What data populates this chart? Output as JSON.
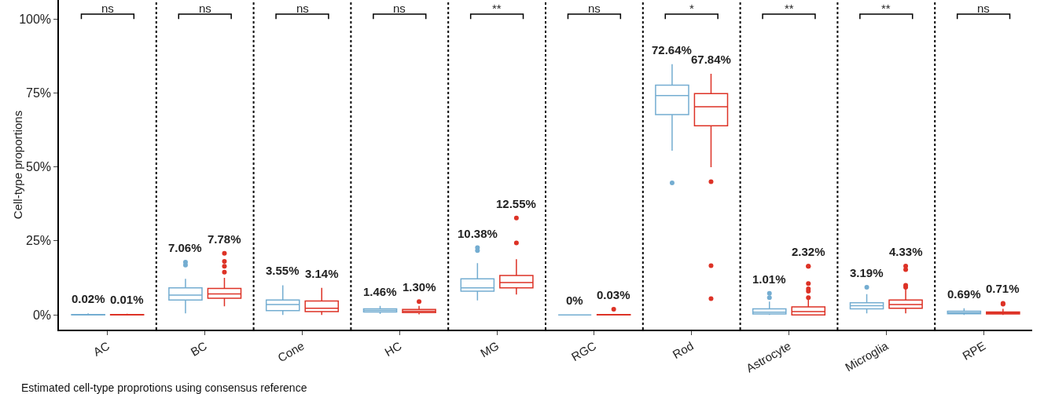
{
  "chart_data": {
    "type": "box",
    "ylabel": "Cell-type proportions",
    "categories": [
      "AC",
      "BC",
      "Cone",
      "HC",
      "MG",
      "RGC",
      "Rod",
      "Astrocyte",
      "Microglia",
      "RPE"
    ],
    "ylim": [
      -5,
      106.4
    ],
    "yticks": [
      {
        "value": 0,
        "label": "0%"
      },
      {
        "value": 25,
        "label": "25%"
      },
      {
        "value": 50,
        "label": "50%"
      },
      {
        "value": 75,
        "label": "75%"
      },
      {
        "value": 100,
        "label": "100%"
      }
    ],
    "grid": false,
    "marker": "circle",
    "series": [
      {
        "color": "#74add1",
        "value_labels": [
          "0.02%",
          "7.06%",
          "3.55%",
          "1.46%",
          "10.38%",
          "0%",
          "72.64%",
          "1.01%",
          "3.19%",
          "0.69%"
        ],
        "boxes": [
          {
            "low": 0,
            "q1": 0,
            "median": 0,
            "q3": 0.1,
            "high": 0.5
          },
          {
            "low": 0.5,
            "q1": 5.0,
            "median": 6.7,
            "q3": 9.1,
            "high": 12.2,
            "outliers": [
              16.8,
              17.8
            ]
          },
          {
            "low": 0,
            "q1": 1.4,
            "median": 3.5,
            "q3": 5.0,
            "high": 10
          },
          {
            "low": 0.3,
            "q1": 1.0,
            "median": 1.5,
            "q3": 2.0,
            "high": 3.0
          },
          {
            "low": 4.9,
            "q1": 8.0,
            "median": 9.1,
            "q3": 12.2,
            "high": 17.5,
            "outliers": [
              21.7,
              22.7
            ]
          },
          {
            "low": 0,
            "q1": 0,
            "median": 0,
            "q3": 0,
            "high": 0
          },
          {
            "low": 55.5,
            "q1": 67.7,
            "median": 74.1,
            "q3": 77.6,
            "high": 84.7,
            "outliers": [
              44.6
            ]
          },
          {
            "low": 0,
            "q1": 0.3,
            "median": 0.9,
            "q3": 2.0,
            "high": 4.5,
            "outliers": [
              5.8,
              7.3
            ]
          },
          {
            "low": 0.5,
            "q1": 2.0,
            "median": 3.1,
            "q3": 4.1,
            "high": 7.0,
            "outliers": [
              9.3
            ]
          },
          {
            "low": 0,
            "q1": 0.4,
            "median": 0.7,
            "q3": 1.2,
            "high": 2.2
          }
        ]
      },
      {
        "color": "#dd3226",
        "value_labels": [
          "0.01%",
          "7.78%",
          "3.14%",
          "1.30%",
          "12.55%",
          "0.03%",
          "67.84%",
          "2.32%",
          "4.33%",
          "0.71%"
        ],
        "boxes": [
          {
            "low": 0,
            "q1": 0,
            "median": 0,
            "q3": 0.1,
            "high": 0.4
          },
          {
            "low": 2.9,
            "q1": 5.6,
            "median": 7.1,
            "q3": 8.9,
            "high": 12.5,
            "outliers": [
              14.4,
              16.4,
              18.1,
              20.8
            ]
          },
          {
            "low": 0,
            "q1": 1.1,
            "median": 2.2,
            "q3": 4.7,
            "high": 9.1
          },
          {
            "low": 0.2,
            "q1": 0.8,
            "median": 1.2,
            "q3": 1.8,
            "high": 3.0,
            "outliers": [
              4.5
            ]
          },
          {
            "low": 6.9,
            "q1": 9.1,
            "median": 10.9,
            "q3": 13.3,
            "high": 18.8,
            "outliers": [
              24.3,
              32.7
            ]
          },
          {
            "low": 0,
            "q1": 0,
            "median": 0,
            "q3": 0.1,
            "high": 0.3,
            "outliers": [
              1.9
            ]
          },
          {
            "low": 49.9,
            "q1": 63.9,
            "median": 70.3,
            "q3": 74.8,
            "high": 81.5,
            "outliers": [
              45.0,
              16.6,
              5.5
            ]
          },
          {
            "low": 0,
            "q1": 0,
            "median": 1.1,
            "q3": 2.7,
            "high": 5.1,
            "outliers": [
              5.8,
              8.0,
              8.8,
              10.6,
              16.4,
              16.4
            ]
          },
          {
            "low": 0.5,
            "q1": 2.2,
            "median": 3.5,
            "q3": 5.0,
            "high": 9.0,
            "outliers": [
              9.3,
              10.0,
              15.3,
              16.5
            ]
          },
          {
            "low": 0,
            "q1": 0.3,
            "median": 0.6,
            "q3": 1.0,
            "high": 2.0,
            "outliers": [
              3.6,
              3.9
            ]
          }
        ]
      }
    ],
    "annotations": [
      "ns",
      "ns",
      "ns",
      "ns",
      "**",
      "ns",
      "*",
      "**",
      "**",
      "ns",
      "Estimated cell-type proprotions using consensus reference"
    ]
  }
}
